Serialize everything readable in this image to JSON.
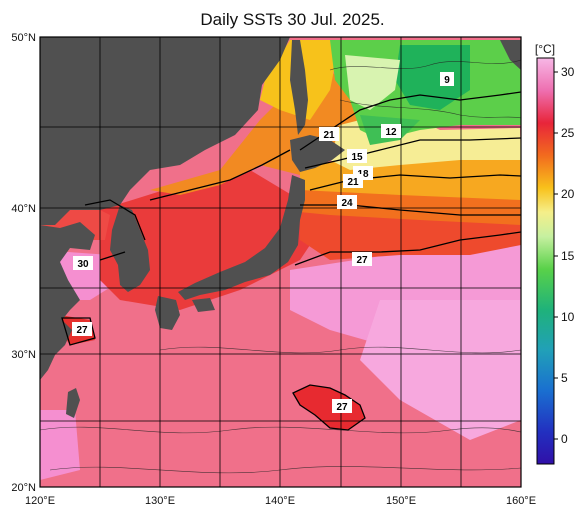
{
  "title": "Daily SSTs 30 Jul. 2025.",
  "map": {
    "lat_labels": [
      "50°N",
      "40°N",
      "30°N",
      "20°N"
    ],
    "lon_labels": [
      "120°E",
      "130°E",
      "140°E",
      "150°E",
      "160°E"
    ],
    "isotherm_labels": [
      {
        "text": "9"
      },
      {
        "text": "12"
      },
      {
        "text": "15"
      },
      {
        "text": "18"
      },
      {
        "text": "21"
      },
      {
        "text": "21"
      },
      {
        "text": "24"
      },
      {
        "text": "27"
      },
      {
        "text": "30"
      },
      {
        "text": "27"
      },
      {
        "text": "27"
      }
    ]
  },
  "colorbar": {
    "unit": "[°C]",
    "ticks": [
      "30",
      "25",
      "20",
      "15",
      "10",
      "5",
      "0"
    ]
  },
  "colors": {
    "land": "#505050",
    "sea_warm": "#f06a7e",
    "sea_hot": "#f59ad6",
    "sea_red": "#e8332a",
    "sea_orange": "#f26b1e",
    "sea_yellow": "#f7c51c",
    "sea_green": "#4cc24a"
  }
}
